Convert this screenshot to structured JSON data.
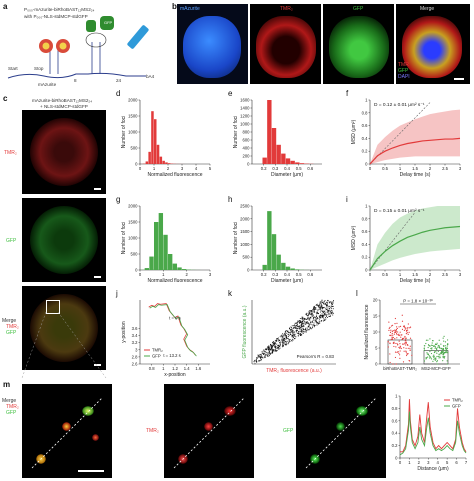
{
  "panels": {
    "a": {
      "label": "a",
      "construct_line1": "P₀₀₀-mAzurite-biRhoBAST₁₂MS2₂₄",
      "construct_line2": "with P₀₀₀-NLS-stdMCP-stdGFP",
      "gfp_tag": "GFP",
      "start": "Start",
      "stop": "Stop",
      "num8": "8",
      "num24": "24",
      "polyA": "bA4",
      "mazurite": "mAzurite"
    },
    "b": {
      "label": "b",
      "titles": [
        "mAzurite",
        "TMR₂",
        "GFP",
        "Merge"
      ],
      "legend": [
        "TMR",
        "GFP",
        "DAPI"
      ]
    },
    "c": {
      "label": "c",
      "title_line1": "mAzurite-biRhoBAST₁₂MS2₂₄",
      "title_line2": "+ NLS-stdMCP-stdGFP",
      "row1": "TMR₂",
      "row2": "GFP",
      "row3_l1": "Merge",
      "row3_l2": "TMR₂",
      "row3_l3": "GFP"
    },
    "m": {
      "label": "m",
      "l1": "Merge",
      "l2": "TMR₂",
      "l3": "GFP",
      "mid": "TMR₂",
      "right": "GFP"
    }
  },
  "chart_data": [
    {
      "id": "d",
      "type": "bar",
      "x": [
        0.1,
        0.3,
        0.5,
        0.7,
        0.9,
        1.1,
        1.3,
        1.5,
        1.7,
        1.9,
        2.1,
        2.3,
        2.5,
        2.7,
        2.9,
        3.1
      ],
      "values": [
        2,
        10,
        80,
        380,
        1650,
        1400,
        600,
        230,
        100,
        50,
        25,
        12,
        6,
        3,
        2,
        1
      ],
      "xlabel": "Normalized fluorescence",
      "ylabel": "Number of foci",
      "xlim": [
        0,
        5
      ],
      "ylim": [
        0,
        2000
      ],
      "xticks": [
        0,
        1,
        2,
        3,
        4,
        5
      ],
      "yticks": [
        0,
        500,
        1000,
        1500,
        2000
      ],
      "color": "#e23a3a"
    },
    {
      "id": "e",
      "type": "bar",
      "x": [
        0.21,
        0.25,
        0.29,
        0.33,
        0.37,
        0.41,
        0.45,
        0.49,
        0.53,
        0.57,
        0.61
      ],
      "values": [
        160,
        1650,
        900,
        480,
        260,
        140,
        80,
        40,
        20,
        10,
        5
      ],
      "xlabel": "Diameter (μm)",
      "ylabel": "Number of foci",
      "xlim": [
        0.1,
        0.7
      ],
      "ylim": [
        0,
        1600
      ],
      "xticks": [
        0.2,
        0.3,
        0.4,
        0.5,
        0.6
      ],
      "yticks": [
        0,
        200,
        400,
        600,
        800,
        1000,
        1200,
        1400,
        1600
      ],
      "color": "#e23a3a"
    },
    {
      "id": "g",
      "type": "bar",
      "x": [
        0.1,
        0.3,
        0.5,
        0.7,
        0.9,
        1.1,
        1.3,
        1.5,
        1.7,
        1.9,
        2.1,
        2.3,
        2.5
      ],
      "values": [
        5,
        60,
        420,
        1500,
        1780,
        1100,
        500,
        200,
        80,
        30,
        12,
        5,
        2
      ],
      "xlabel": "Normalized fluorescence",
      "ylabel": "Number of foci",
      "xlim": [
        0,
        3
      ],
      "ylim": [
        0,
        2000
      ],
      "xticks": [
        0,
        1,
        2,
        3
      ],
      "yticks": [
        0,
        500,
        1000,
        1500,
        2000
      ],
      "color": "#4aa84a"
    },
    {
      "id": "h",
      "type": "bar",
      "x": [
        0.21,
        0.25,
        0.29,
        0.33,
        0.37,
        0.41,
        0.45,
        0.49,
        0.53,
        0.57
      ],
      "values": [
        200,
        2300,
        1400,
        600,
        280,
        130,
        60,
        25,
        10,
        4
      ],
      "xlabel": "Diameter (μm)",
      "ylabel": "Number of foci",
      "xlim": [
        0.1,
        0.7
      ],
      "ylim": [
        0,
        2500
      ],
      "xticks": [
        0.2,
        0.3,
        0.4,
        0.5,
        0.6
      ],
      "yticks": [
        0,
        500,
        1000,
        1500,
        2000,
        2500
      ],
      "color": "#4aa84a"
    },
    {
      "id": "f",
      "type": "line",
      "annotation": "D = 0.12 ± 0.01 μm² s⁻¹",
      "x": [
        0,
        0.25,
        0.5,
        0.75,
        1,
        1.25,
        1.5,
        1.75,
        2,
        2.25,
        2.5,
        2.75,
        3
      ],
      "mean": [
        0,
        0.13,
        0.2,
        0.25,
        0.29,
        0.32,
        0.34,
        0.36,
        0.37,
        0.38,
        0.39,
        0.39,
        0.4
      ],
      "upper": [
        0,
        0.3,
        0.42,
        0.52,
        0.6,
        0.65,
        0.7,
        0.74,
        0.78,
        0.8,
        0.82,
        0.84,
        0.85
      ],
      "lower": [
        0,
        0.03,
        0.06,
        0.08,
        0.1,
        0.11,
        0.12,
        0.12,
        0.12,
        0.12,
        0.12,
        0.12,
        0.12
      ],
      "fit": [
        0,
        0.12,
        0.24,
        0.36,
        0.48,
        0.6,
        0.72,
        0.84,
        0.96,
        1.08,
        1.2,
        1.32,
        1.44
      ],
      "xlabel": "Delay time (s)",
      "ylabel": "MSD (μm²)",
      "xlim": [
        0,
        3
      ],
      "ylim": [
        0,
        1.0
      ],
      "xticks": [
        0,
        0.5,
        1.0,
        1.5,
        2.0,
        2.5,
        3.0
      ],
      "yticks": [
        0,
        0.2,
        0.4,
        0.6,
        0.8,
        1.0
      ],
      "color": "#e23a3a",
      "band": "#f4b5b5"
    },
    {
      "id": "i",
      "type": "line",
      "annotation": "D = 0.15 ± 0.01 μm² s⁻¹",
      "x": [
        0,
        0.25,
        0.5,
        0.75,
        1,
        1.25,
        1.5,
        1.75,
        2,
        2.25,
        2.5,
        2.75,
        3
      ],
      "mean": [
        0,
        0.18,
        0.29,
        0.38,
        0.45,
        0.51,
        0.55,
        0.59,
        0.62,
        0.64,
        0.66,
        0.67,
        0.68
      ],
      "upper": [
        0,
        0.4,
        0.58,
        0.72,
        0.82,
        0.88,
        0.93,
        0.96,
        0.98,
        1.0,
        1.0,
        1.0,
        1.0
      ],
      "lower": [
        0,
        0.05,
        0.1,
        0.15,
        0.19,
        0.22,
        0.25,
        0.27,
        0.29,
        0.3,
        0.31,
        0.32,
        0.33
      ],
      "fit": [
        0,
        0.15,
        0.3,
        0.45,
        0.6,
        0.75,
        0.9,
        1.05,
        1.2,
        1.35,
        1.5,
        1.65,
        1.8
      ],
      "xlabel": "Delay time (s)",
      "ylabel": "MSD (μm²)",
      "xlim": [
        0,
        3
      ],
      "ylim": [
        0,
        1.0
      ],
      "xticks": [
        0,
        0.5,
        1.0,
        1.5,
        2.0,
        2.5,
        3.0
      ],
      "yticks": [
        0,
        0.2,
        0.4,
        0.6,
        0.8,
        1.0
      ],
      "color": "#4aa84a",
      "band": "#bfe3bf"
    },
    {
      "id": "j",
      "type": "line",
      "xlabel": "x-position",
      "ylabel": "y-position",
      "xlim": [
        0.6,
        1.8
      ],
      "ylim": [
        2.6,
        4.4
      ],
      "xticks": [
        0.8,
        1.0,
        1.2,
        1.4,
        1.6
      ],
      "yticks": [
        2.6,
        2.8,
        3.0,
        3.2,
        3.4,
        3.6
      ],
      "ann_start": "t = 0 s",
      "ann_end": "t = 13.2 s",
      "legend": [
        "TMR₂",
        "GFP"
      ]
    },
    {
      "id": "k",
      "type": "scatter",
      "xlabel": "TMR₂ fluorescence (a.u.)",
      "ylabel": "GFP fluorescence (a.u.)",
      "annotation": "Pearson's R = 0.83"
    },
    {
      "id": "l",
      "type": "bar",
      "categories": [
        "biRhoBAST-TMR₂",
        "MS2-MCP-GFP"
      ],
      "values": [
        7.5,
        4.2
      ],
      "ylabel": "Normalized fluorescence",
      "ylim": [
        0,
        20
      ],
      "yticks": [
        0,
        5,
        10,
        15,
        20
      ],
      "annotation": "P = 1.8 × 10⁻³⁰",
      "colors": [
        "#e23a3a",
        "#4aa84a"
      ]
    },
    {
      "id": "n",
      "type": "line",
      "xlabel": "Distance (μm)",
      "ylabel": "Normalized fluorescence",
      "xlim": [
        0,
        7
      ],
      "ylim": [
        0,
        1.0
      ],
      "xticks": [
        0,
        1,
        2,
        3,
        4,
        5,
        6,
        7
      ],
      "yticks": [
        0,
        0.2,
        0.4,
        0.6,
        0.8,
        1.0
      ],
      "legend": [
        "TMR₂",
        "GFP"
      ],
      "x": [
        0,
        0.3,
        0.6,
        0.9,
        1.0,
        1.1,
        1.3,
        1.6,
        1.9,
        2.1,
        2.3,
        2.6,
        2.8,
        3.0,
        3.2,
        3.5,
        3.8,
        4.1,
        4.4,
        4.7,
        5.0,
        5.3,
        5.6,
        5.9,
        6.1,
        6.3,
        6.6,
        6.8,
        7.0
      ],
      "series": [
        {
          "name": "TMR₂",
          "color": "#e23a3a",
          "values": [
            0.1,
            0.1,
            0.2,
            0.55,
            0.95,
            0.6,
            0.3,
            0.2,
            0.35,
            0.7,
            0.4,
            0.25,
            0.6,
            0.9,
            0.5,
            0.25,
            0.15,
            0.2,
            0.15,
            0.2,
            0.25,
            0.2,
            0.15,
            0.3,
            0.8,
            0.5,
            0.25,
            0.15,
            0.1
          ]
        },
        {
          "name": "GFP",
          "color": "#4aa84a",
          "values": [
            0.05,
            0.08,
            0.15,
            0.45,
            0.75,
            0.5,
            0.25,
            0.15,
            0.25,
            0.5,
            0.3,
            0.2,
            0.45,
            0.65,
            0.4,
            0.2,
            0.12,
            0.15,
            0.12,
            0.15,
            0.2,
            0.15,
            0.12,
            0.25,
            0.6,
            0.4,
            0.2,
            0.12,
            0.08
          ]
        }
      ]
    }
  ]
}
